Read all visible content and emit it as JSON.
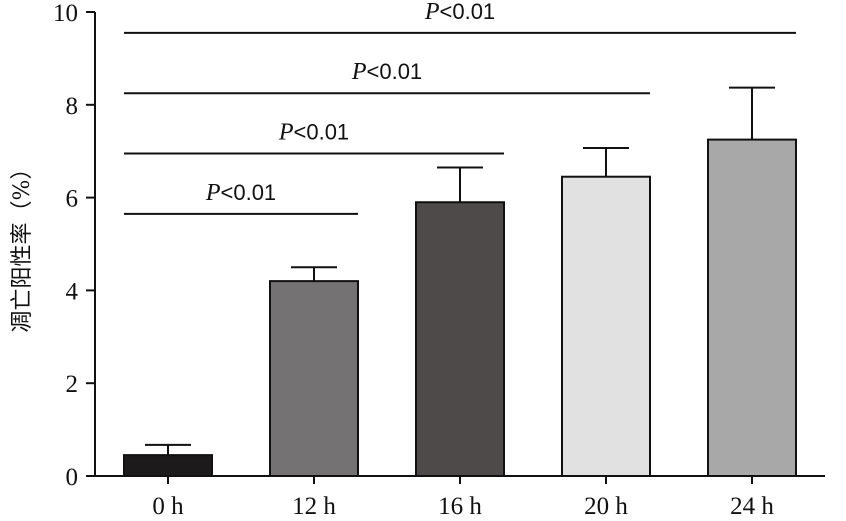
{
  "chart_data": {
    "type": "bar",
    "title": "",
    "xlabel": "",
    "ylabel": "凋亡阳性率（%）",
    "categories": [
      "0 h",
      "12 h",
      "16 h",
      "20 h",
      "24 h"
    ],
    "values": [
      0.45,
      4.2,
      5.9,
      6.45,
      7.25
    ],
    "errors": [
      0.22,
      0.3,
      0.75,
      0.62,
      1.12
    ],
    "bar_colors": [
      "#1c1a1a",
      "#747272",
      "#4e4a49",
      "#e1e1e1",
      "#a8a8a8"
    ],
    "ylim": [
      0,
      10
    ],
    "yticks": [
      "0",
      "2",
      "4",
      "6",
      "8",
      "10"
    ],
    "grid": false,
    "significance": [
      {
        "p": "P",
        "op": "<0.01",
        "from": "0 h",
        "to": "12 h",
        "y": 5.65
      },
      {
        "p": "P",
        "op": "<0.01",
        "from": "0 h",
        "to": "16 h",
        "y": 6.95
      },
      {
        "p": "P",
        "op": "<0.01",
        "from": "0 h",
        "to": "20 h",
        "y": 8.25
      },
      {
        "p": "P",
        "op": "<0.01",
        "from": "0 h",
        "to": "24 h",
        "y": 9.55
      }
    ]
  }
}
